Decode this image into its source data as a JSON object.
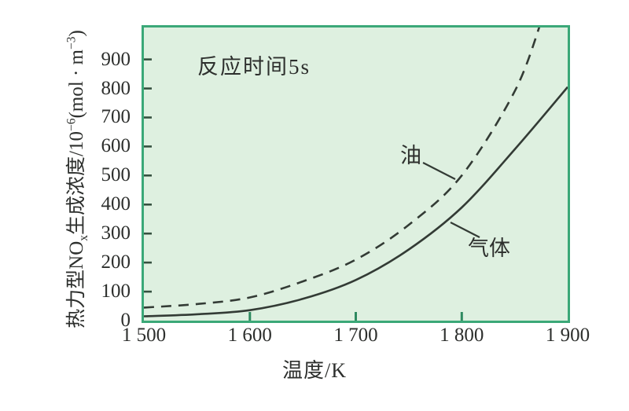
{
  "colors": {
    "plot_background": "#def0e0",
    "plot_border": "#3ba878",
    "curve": "#333b35",
    "x_tick_mark": "#2e8a60",
    "y_tick_mark": "#35503f",
    "text": "#2d2f2d",
    "page_background": "#ffffff"
  },
  "ylabel_rich": {
    "p1": "热力型NO",
    "sub1": "x",
    "p2": "生成浓度/10",
    "sup1": "−6",
    "p3": "(mol · m",
    "sup2": "−3",
    "p4": ")"
  },
  "chart_data": {
    "type": "line",
    "annotation": "反应时间5s",
    "xlabel": "温度/K",
    "ylabel": "热力型NOx生成浓度/10⁻⁶(mol·m⁻³)",
    "xlim": [
      1500,
      1900
    ],
    "ylim": [
      0,
      1010
    ],
    "grid": false,
    "legend_position": "inline-labels",
    "x_ticks": [
      {
        "v": 1500,
        "label": "1 500",
        "mark": false
      },
      {
        "v": 1600,
        "label": "1 600",
        "mark": true
      },
      {
        "v": 1700,
        "label": "1 700",
        "mark": true
      },
      {
        "v": 1800,
        "label": "1 800",
        "mark": true
      },
      {
        "v": 1900,
        "label": "1 900",
        "mark": false
      }
    ],
    "y_ticks": [
      {
        "v": 0,
        "label": "0",
        "mark": false
      },
      {
        "v": 100,
        "label": "100",
        "mark": true
      },
      {
        "v": 200,
        "label": "200",
        "mark": true
      },
      {
        "v": 300,
        "label": "300",
        "mark": true
      },
      {
        "v": 400,
        "label": "400",
        "mark": true
      },
      {
        "v": 500,
        "label": "500",
        "mark": true
      },
      {
        "v": 600,
        "label": "600",
        "mark": true
      },
      {
        "v": 700,
        "label": "700",
        "mark": true
      },
      {
        "v": 800,
        "label": "800",
        "mark": true
      },
      {
        "v": 900,
        "label": "900",
        "mark": true
      }
    ],
    "series": [
      {
        "name": "油",
        "key": "oil",
        "line_style": "dashed",
        "points": [
          [
            1500,
            45
          ],
          [
            1550,
            57
          ],
          [
            1600,
            80
          ],
          [
            1650,
            135
          ],
          [
            1700,
            210
          ],
          [
            1750,
            330
          ],
          [
            1800,
            500
          ],
          [
            1850,
            790
          ],
          [
            1875,
            1030
          ]
        ]
      },
      {
        "name": "气体",
        "key": "gas",
        "line_style": "solid",
        "points": [
          [
            1500,
            15
          ],
          [
            1550,
            22
          ],
          [
            1600,
            36
          ],
          [
            1650,
            75
          ],
          [
            1700,
            140
          ],
          [
            1750,
            245
          ],
          [
            1800,
            390
          ],
          [
            1850,
            590
          ],
          [
            1900,
            805
          ]
        ]
      }
    ]
  }
}
